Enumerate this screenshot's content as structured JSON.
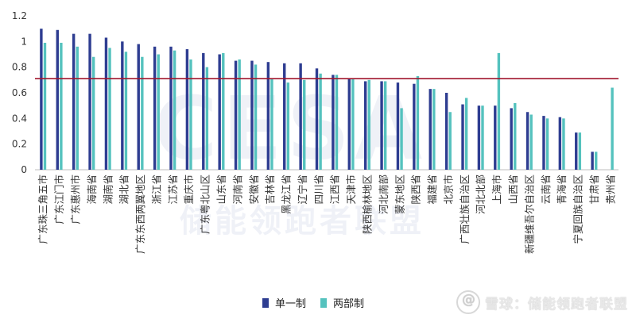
{
  "chart_data": {
    "type": "bar",
    "categories": [
      "广东珠三角五市",
      "广东江门市",
      "广东惠州市",
      "海南省",
      "湖南省",
      "湖北省",
      "广东东西两翼地区",
      "浙江省",
      "江苏省",
      "重庆市",
      "广东粤北山区",
      "山东省",
      "河南省",
      "安徽省",
      "吉林省",
      "黑龙江省",
      "辽宁省",
      "四川省",
      "江西省",
      "天津市",
      "陕西榆林地区",
      "河北南部",
      "蒙东地区",
      "陕西省",
      "福建省",
      "北京市",
      "广西壮族自治区",
      "河北北部",
      "上海市",
      "山西省",
      "新疆维吾尔自治区",
      "云南省",
      "青海省",
      "宁夏回族自治区",
      "甘肃省",
      "贵州省"
    ],
    "series": [
      {
        "name": "单一制",
        "color": "#2e3d91",
        "values": [
          1.1,
          1.09,
          1.06,
          1.06,
          1.03,
          1.0,
          0.98,
          0.96,
          0.96,
          0.94,
          0.91,
          0.9,
          0.85,
          0.85,
          0.84,
          0.83,
          0.83,
          0.79,
          0.74,
          0.71,
          0.69,
          0.69,
          0.68,
          0.67,
          0.63,
          0.6,
          0.51,
          0.5,
          0.5,
          0.48,
          0.45,
          0.42,
          0.41,
          0.29,
          0.14,
          null
        ]
      },
      {
        "name": "两部制",
        "color": "#55c2be",
        "values": [
          0.99,
          0.99,
          0.96,
          0.88,
          0.95,
          0.92,
          0.88,
          0.9,
          0.93,
          0.86,
          0.8,
          0.91,
          0.86,
          0.82,
          0.71,
          0.68,
          0.7,
          0.75,
          0.74,
          0.71,
          0.7,
          0.69,
          0.48,
          0.73,
          0.63,
          0.45,
          0.56,
          0.5,
          0.91,
          0.52,
          0.43,
          0.4,
          0.4,
          0.29,
          0.14,
          0.64
        ]
      }
    ],
    "reference_line": {
      "value": 0.71,
      "color": "#a0152c"
    },
    "ylim": [
      0,
      1.2
    ],
    "yticks": [
      "0",
      "0.2",
      "0.4",
      "0.6",
      "0.8",
      "1",
      "1.2"
    ],
    "title": "",
    "xlabel": "",
    "ylabel": "",
    "legend_position": "bottom-center",
    "grid": false
  },
  "legend": {
    "series1": "单一制",
    "series2": "两部制"
  },
  "watermarks": {
    "center": "CESA",
    "center_sub": "储能领跑者联盟",
    "footer": "雪球：储能领跑者联盟"
  }
}
